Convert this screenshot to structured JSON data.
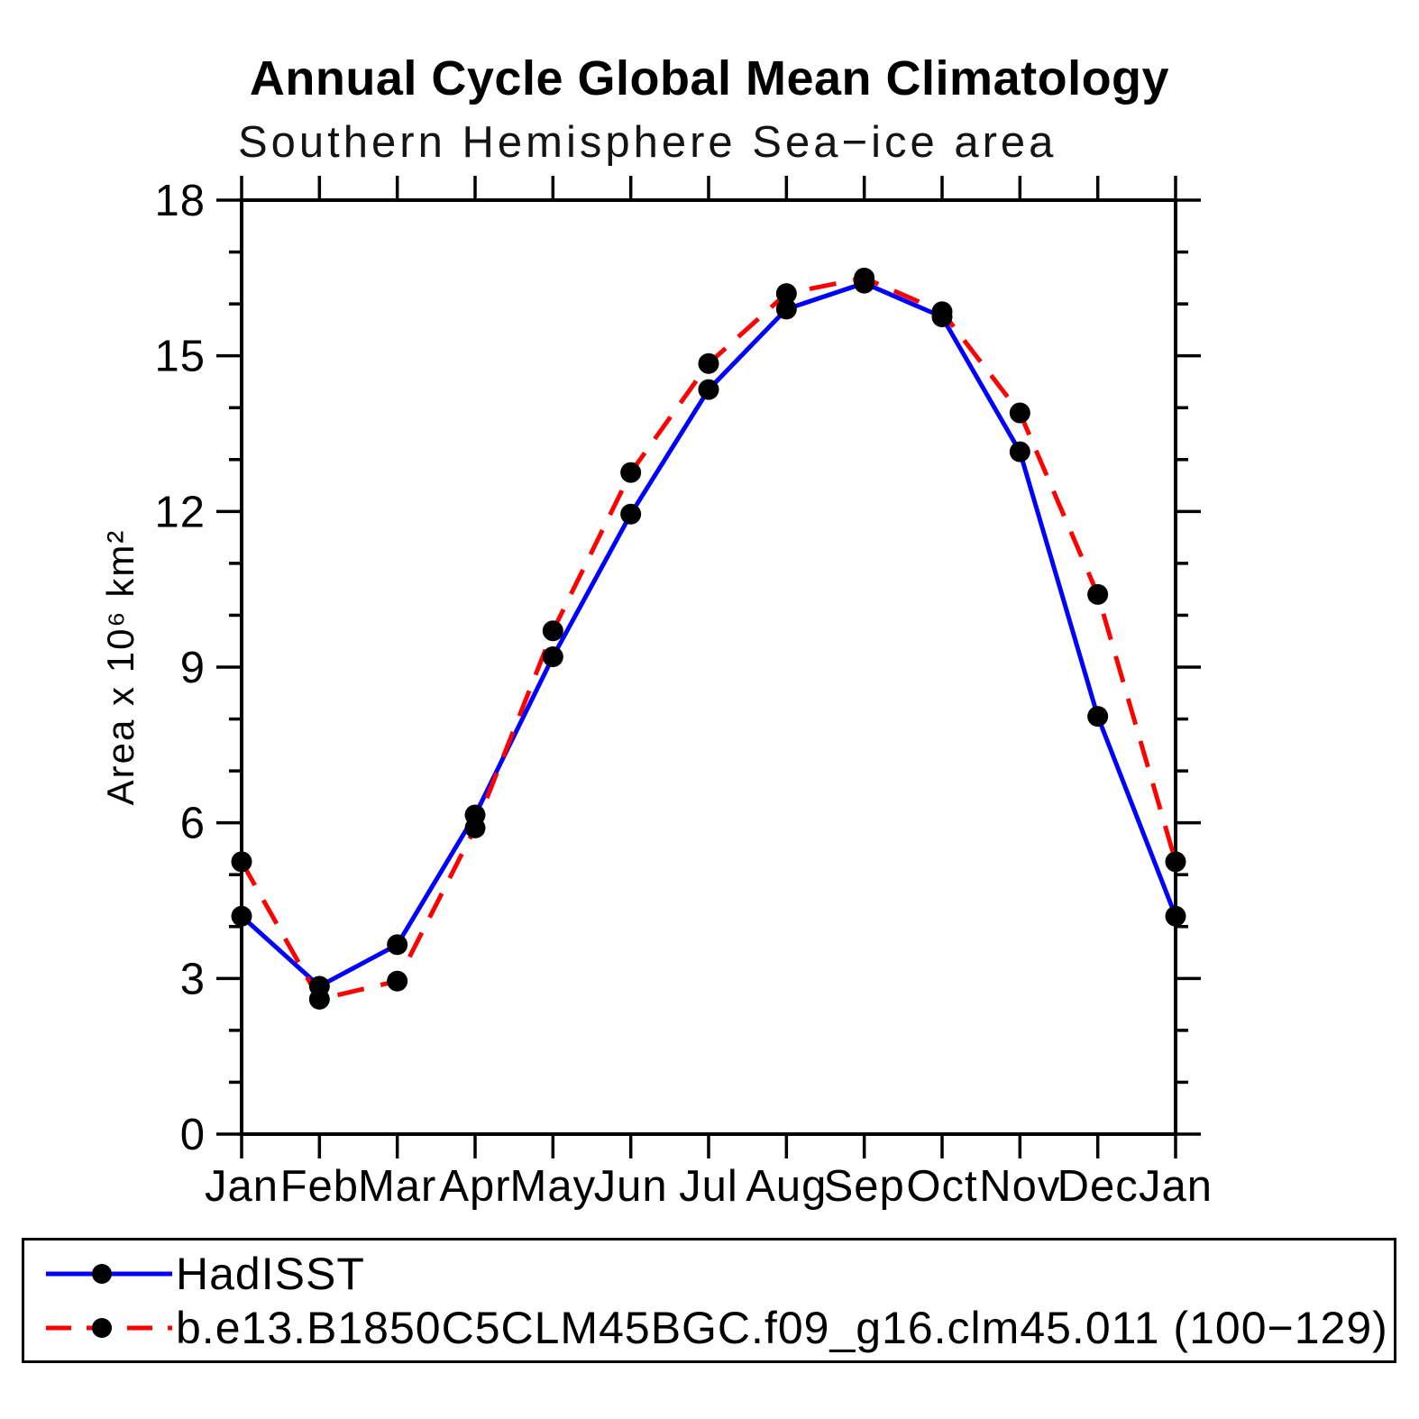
{
  "title": "Annual Cycle Global Mean Climatology",
  "subtitle": "Southern Hemisphere Sea−ice area",
  "chart_data": {
    "type": "line",
    "title": "Annual Cycle Global Mean Climatology",
    "subtitle": "Southern Hemisphere Sea−ice area",
    "xlabel": "",
    "ylabel": "Area x 10⁶ km²",
    "x_categories": [
      "Jan",
      "Feb",
      "Mar",
      "Apr",
      "May",
      "Jun",
      "Jul",
      "Aug",
      "Sep",
      "Oct",
      "Nov",
      "Dec",
      "Jan"
    ],
    "ylim": [
      0,
      18
    ],
    "ytick_major": [
      0,
      3,
      6,
      9,
      12,
      15,
      18
    ],
    "ytick_minor_step": 1,
    "grid": false,
    "legend_position": "bottom-box",
    "frame_color": "#000000",
    "marker_shape": "filled-circle",
    "series": [
      {
        "name": "HadISST",
        "color": "#0000ff",
        "line_style": "solid",
        "marker_color": "#000000",
        "values": [
          4.2,
          2.85,
          3.65,
          6.15,
          9.2,
          11.95,
          14.35,
          15.9,
          16.4,
          15.75,
          13.15,
          8.05,
          4.2
        ]
      },
      {
        "name": "b.e13.B1850C5CLM45BGC.f09_g16.clm45.011 (100−129)",
        "color": "#ff0000",
        "line_style": "dashed",
        "marker_color": "#000000",
        "values": [
          5.25,
          2.6,
          2.95,
          5.9,
          9.7,
          12.75,
          14.85,
          16.2,
          16.5,
          15.85,
          13.9,
          10.4,
          5.25
        ]
      }
    ]
  }
}
